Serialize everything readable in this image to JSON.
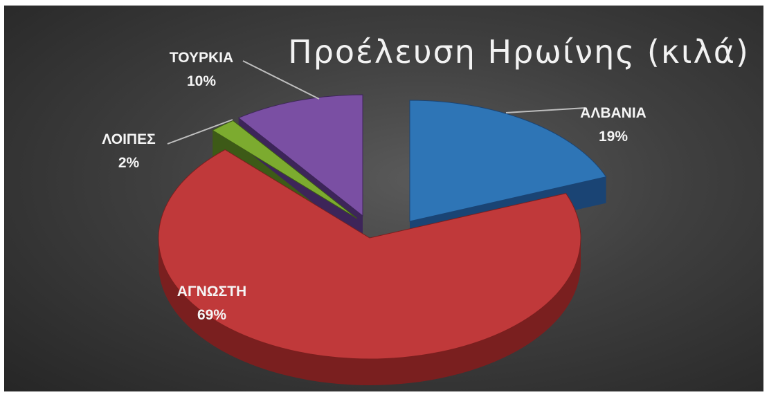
{
  "chart_data": {
    "type": "pie",
    "title": "Προέλευση Ηρωίνης (κιλά)",
    "slices": [
      {
        "label": "ΑΛΒΑΝΙΑ",
        "value": 19,
        "pct_label": "19%",
        "color": "#2e75b6",
        "side": "#1a4474"
      },
      {
        "label": "ΑΓΝΩΣΤΗ",
        "value": 69,
        "pct_label": "69%",
        "color": "#c0393a",
        "side": "#7a1f1f"
      },
      {
        "label": "ΛΟΙΠΕΣ",
        "value": 2,
        "pct_label": "2%",
        "color": "#7cab2f",
        "side": "#3d5a17"
      },
      {
        "label": "ΤΟΥΡΚΙΑ",
        "value": 10,
        "pct_label": "10%",
        "color": "#7a4fa3",
        "side": "#3d2559"
      }
    ],
    "legend": "none"
  }
}
